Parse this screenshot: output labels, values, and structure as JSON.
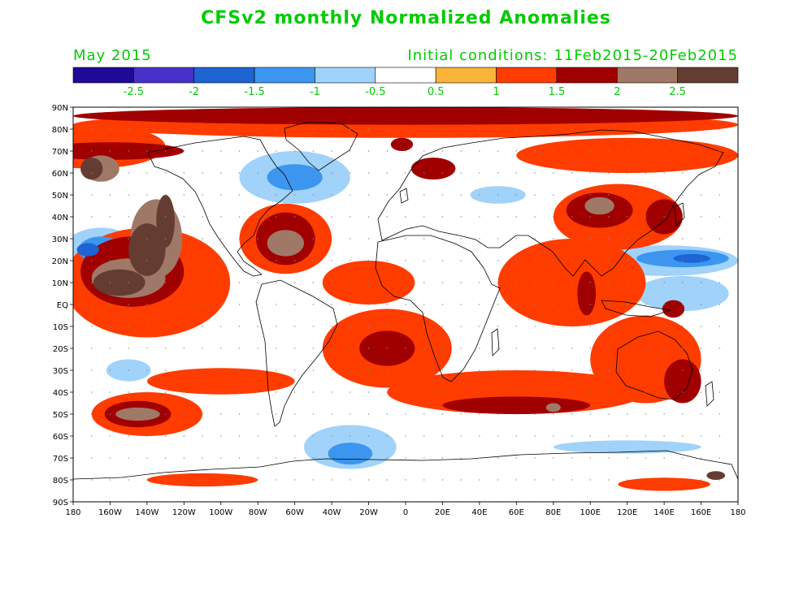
{
  "title": "CFSv2 monthly Normalized Anomalies",
  "valid_month": "May 2015",
  "initial_conditions": "Initial conditions: 11Feb2015-20Feb2015",
  "text_color": "#00cc00",
  "colorbar": {
    "colors": [
      "#1e0a96",
      "#4632c8",
      "#1e64d2",
      "#3c96f0",
      "#a0d2fa",
      "#ffffff",
      "#fab43c",
      "#ff3c00",
      "#a00000",
      "#a07868",
      "#643c32"
    ],
    "labels": [
      "-2.5",
      "-2",
      "-1.5",
      "-1",
      "-0.5",
      "0.5",
      "1",
      "1.5",
      "2",
      "2.5"
    ]
  },
  "lat_labels": [
    "90N",
    "80N",
    "70N",
    "60N",
    "50N",
    "40N",
    "30N",
    "20N",
    "10N",
    "EQ",
    "10S",
    "20S",
    "30S",
    "40S",
    "50S",
    "60S",
    "70S",
    "80S",
    "90S"
  ],
  "lon_labels": [
    "180",
    "160W",
    "140W",
    "120W",
    "100W",
    "80W",
    "60W",
    "40W",
    "20W",
    "0",
    "20E",
    "40E",
    "60E",
    "80E",
    "100E",
    "120E",
    "140E",
    "160E",
    "180"
  ],
  "anomaly_regions": [
    {
      "level": 2.5,
      "lon": -155,
      "lat": 10,
      "rx": 14,
      "ry": 6
    },
    {
      "level": 2.5,
      "lon": -140,
      "lat": 25,
      "rx": 10,
      "ry": 12
    },
    {
      "level": 2.5,
      "lon": -130,
      "lat": 38,
      "rx": 5,
      "ry": 12
    },
    {
      "level": 2.5,
      "lon": -170,
      "lat": 62,
      "rx": 6,
      "ry": 5
    },
    {
      "level": 2.5,
      "lon": 168,
      "lat": -78,
      "rx": 5,
      "ry": 2
    },
    {
      "level": 2,
      "lon": -150,
      "lat": 12,
      "rx": 20,
      "ry": 9
    },
    {
      "level": 2,
      "lon": -135,
      "lat": 30,
      "rx": 14,
      "ry": 18
    },
    {
      "level": 2,
      "lon": -165,
      "lat": 62,
      "rx": 10,
      "ry": 6
    },
    {
      "level": 2,
      "lon": -145,
      "lat": -50,
      "rx": 12,
      "ry": 3
    },
    {
      "level": 2,
      "lon": -65,
      "lat": 28,
      "rx": 10,
      "ry": 6
    },
    {
      "level": 2,
      "lon": 105,
      "lat": 45,
      "rx": 8,
      "ry": 4
    },
    {
      "level": 2,
      "lon": 80,
      "lat": -47,
      "rx": 4,
      "ry": 2
    },
    {
      "level": 1.5,
      "lon": -148,
      "lat": 15,
      "rx": 28,
      "ry": 16
    },
    {
      "level": 1.5,
      "lon": -160,
      "lat": 70,
      "rx": 40,
      "ry": 4
    },
    {
      "level": 1.5,
      "lon": -145,
      "lat": -50,
      "rx": 18,
      "ry": 6
    },
    {
      "level": 1.5,
      "lon": -65,
      "lat": 30,
      "rx": 16,
      "ry": 12
    },
    {
      "level": 1.5,
      "lon": 0,
      "lat": 86,
      "rx": 180,
      "ry": 4
    },
    {
      "level": 1.5,
      "lon": -2,
      "lat": 73,
      "rx": 6,
      "ry": 3
    },
    {
      "level": 1.5,
      "lon": 15,
      "lat": 62,
      "rx": 12,
      "ry": 5
    },
    {
      "level": 1.5,
      "lon": -10,
      "lat": -20,
      "rx": 15,
      "ry": 8
    },
    {
      "level": 1.5,
      "lon": 60,
      "lat": -46,
      "rx": 40,
      "ry": 4
    },
    {
      "level": 1.5,
      "lon": 105,
      "lat": 43,
      "rx": 18,
      "ry": 8
    },
    {
      "level": 1.5,
      "lon": 140,
      "lat": 40,
      "rx": 10,
      "ry": 8
    },
    {
      "level": 1.5,
      "lon": 98,
      "lat": 5,
      "rx": 5,
      "ry": 10
    },
    {
      "level": 1.5,
      "lon": 150,
      "lat": -35,
      "rx": 10,
      "ry": 10
    },
    {
      "level": 1.5,
      "lon": 145,
      "lat": -2,
      "rx": 6,
      "ry": 4
    },
    {
      "level": 1,
      "lon": -140,
      "lat": 10,
      "rx": 45,
      "ry": 25
    },
    {
      "level": 1,
      "lon": -170,
      "lat": 72,
      "rx": 40,
      "ry": 10
    },
    {
      "level": 1,
      "lon": -140,
      "lat": -50,
      "rx": 30,
      "ry": 10
    },
    {
      "level": 1,
      "lon": 0,
      "lat": 82,
      "rx": 180,
      "ry": 6
    },
    {
      "level": 1,
      "lon": 120,
      "lat": 68,
      "rx": 60,
      "ry": 8
    },
    {
      "level": 1,
      "lon": -65,
      "lat": 30,
      "rx": 25,
      "ry": 16
    },
    {
      "level": 1,
      "lon": -20,
      "lat": 10,
      "rx": 25,
      "ry": 10
    },
    {
      "level": 1,
      "lon": -10,
      "lat": -20,
      "rx": 35,
      "ry": 18
    },
    {
      "level": 1,
      "lon": 60,
      "lat": -40,
      "rx": 70,
      "ry": 10
    },
    {
      "level": 1,
      "lon": 90,
      "lat": 10,
      "rx": 40,
      "ry": 20
    },
    {
      "level": 1,
      "lon": 115,
      "lat": 40,
      "rx": 35,
      "ry": 15
    },
    {
      "level": 1,
      "lon": 130,
      "lat": -25,
      "rx": 30,
      "ry": 20
    },
    {
      "level": 1,
      "lon": -110,
      "lat": -80,
      "rx": 30,
      "ry": 3
    },
    {
      "level": 1,
      "lon": 140,
      "lat": -82,
      "rx": 25,
      "ry": 3
    },
    {
      "level": 1,
      "lon": -100,
      "lat": -35,
      "rx": 40,
      "ry": 6
    },
    {
      "level": -0.5,
      "lon": -165,
      "lat": 25,
      "rx": 20,
      "ry": 10
    },
    {
      "level": -0.5,
      "lon": -60,
      "lat": 58,
      "rx": 30,
      "ry": 12
    },
    {
      "level": -0.5,
      "lon": 140,
      "lat": 20,
      "rx": 40,
      "ry": 7
    },
    {
      "level": -0.5,
      "lon": 150,
      "lat": 5,
      "rx": 25,
      "ry": 8
    },
    {
      "level": -0.5,
      "lon": -30,
      "lat": -65,
      "rx": 25,
      "ry": 10
    },
    {
      "level": -0.5,
      "lon": 120,
      "lat": -65,
      "rx": 40,
      "ry": 3
    },
    {
      "level": -0.5,
      "lon": -150,
      "lat": -30,
      "rx": 12,
      "ry": 5
    },
    {
      "level": -0.5,
      "lon": 50,
      "lat": 50,
      "rx": 15,
      "ry": 4
    },
    {
      "level": -1,
      "lon": -165,
      "lat": 25,
      "rx": 12,
      "ry": 6
    },
    {
      "level": -1,
      "lon": -60,
      "lat": 58,
      "rx": 15,
      "ry": 6
    },
    {
      "level": -1,
      "lon": 150,
      "lat": 21,
      "rx": 25,
      "ry": 4
    },
    {
      "level": -1,
      "lon": -30,
      "lat": -68,
      "rx": 12,
      "ry": 5
    },
    {
      "level": -1.5,
      "lon": -172,
      "lat": 25,
      "rx": 6,
      "ry": 3
    },
    {
      "level": -1.5,
      "lon": 155,
      "lat": 21,
      "rx": 10,
      "ry": 2
    }
  ]
}
